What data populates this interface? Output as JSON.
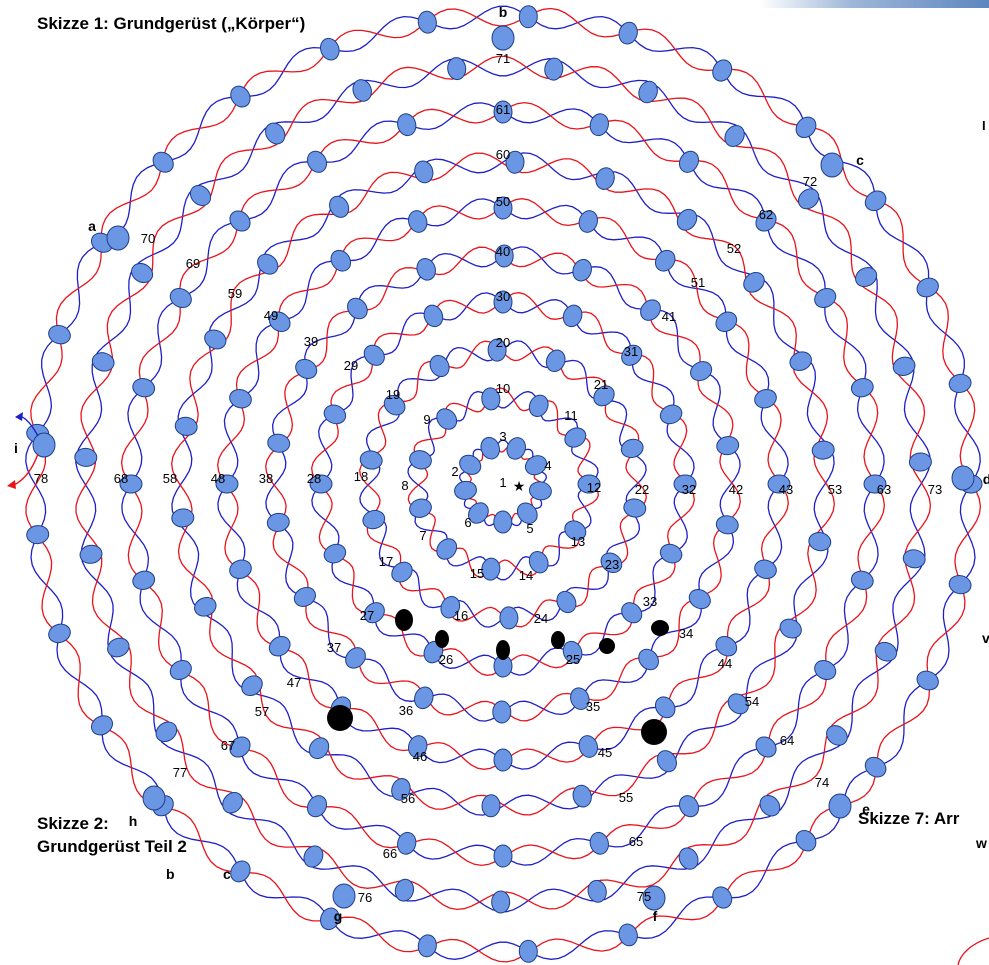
{
  "titles": {
    "sketch1": "Skizze 1: Grundgerüst („Körper“)",
    "sketch2_line1": "Skizze 2:",
    "sketch2_line2": "Grundgerüst Teil 2",
    "sketch7": "Skizze 7: Arr"
  },
  "stray_letters": {
    "right_top": "I",
    "right_mid": "v",
    "right_low": "w",
    "sketch2_b": "b",
    "sketch2_c": "c"
  },
  "corner_labels": [
    "a",
    "b",
    "c",
    "d",
    "e",
    "f",
    "g",
    "h",
    "i"
  ],
  "node_numbers": [
    "1",
    "2",
    "3",
    "4",
    "5",
    "6",
    "7",
    "8",
    "9",
    "10",
    "11",
    "12",
    "13",
    "14",
    "15",
    "16",
    "17",
    "18",
    "19",
    "20",
    "21",
    "22",
    "23",
    "24",
    "25",
    "26",
    "27",
    "28",
    "29",
    "30",
    "31",
    "32",
    "33",
    "34",
    "35",
    "36",
    "37",
    "38",
    "39",
    "40",
    "41",
    "42",
    "43",
    "44",
    "45",
    "46",
    "47",
    "48",
    "49",
    "50",
    "51",
    "52",
    "53",
    "54",
    "55",
    "56",
    "57",
    "58",
    "59",
    "60",
    "61",
    "62",
    "63",
    "64",
    "65",
    "66",
    "67",
    "68",
    "69",
    "70",
    "71",
    "72",
    "73",
    "74",
    "75",
    "76",
    "77",
    "78"
  ],
  "marker_symbol": "★",
  "colors": {
    "red_strand": "#e8131b",
    "blue_strand": "#1f1fc8",
    "bead_fill": "#6b96e3",
    "bead_stroke": "#1e3f8a",
    "black_bead": "#000000"
  }
}
